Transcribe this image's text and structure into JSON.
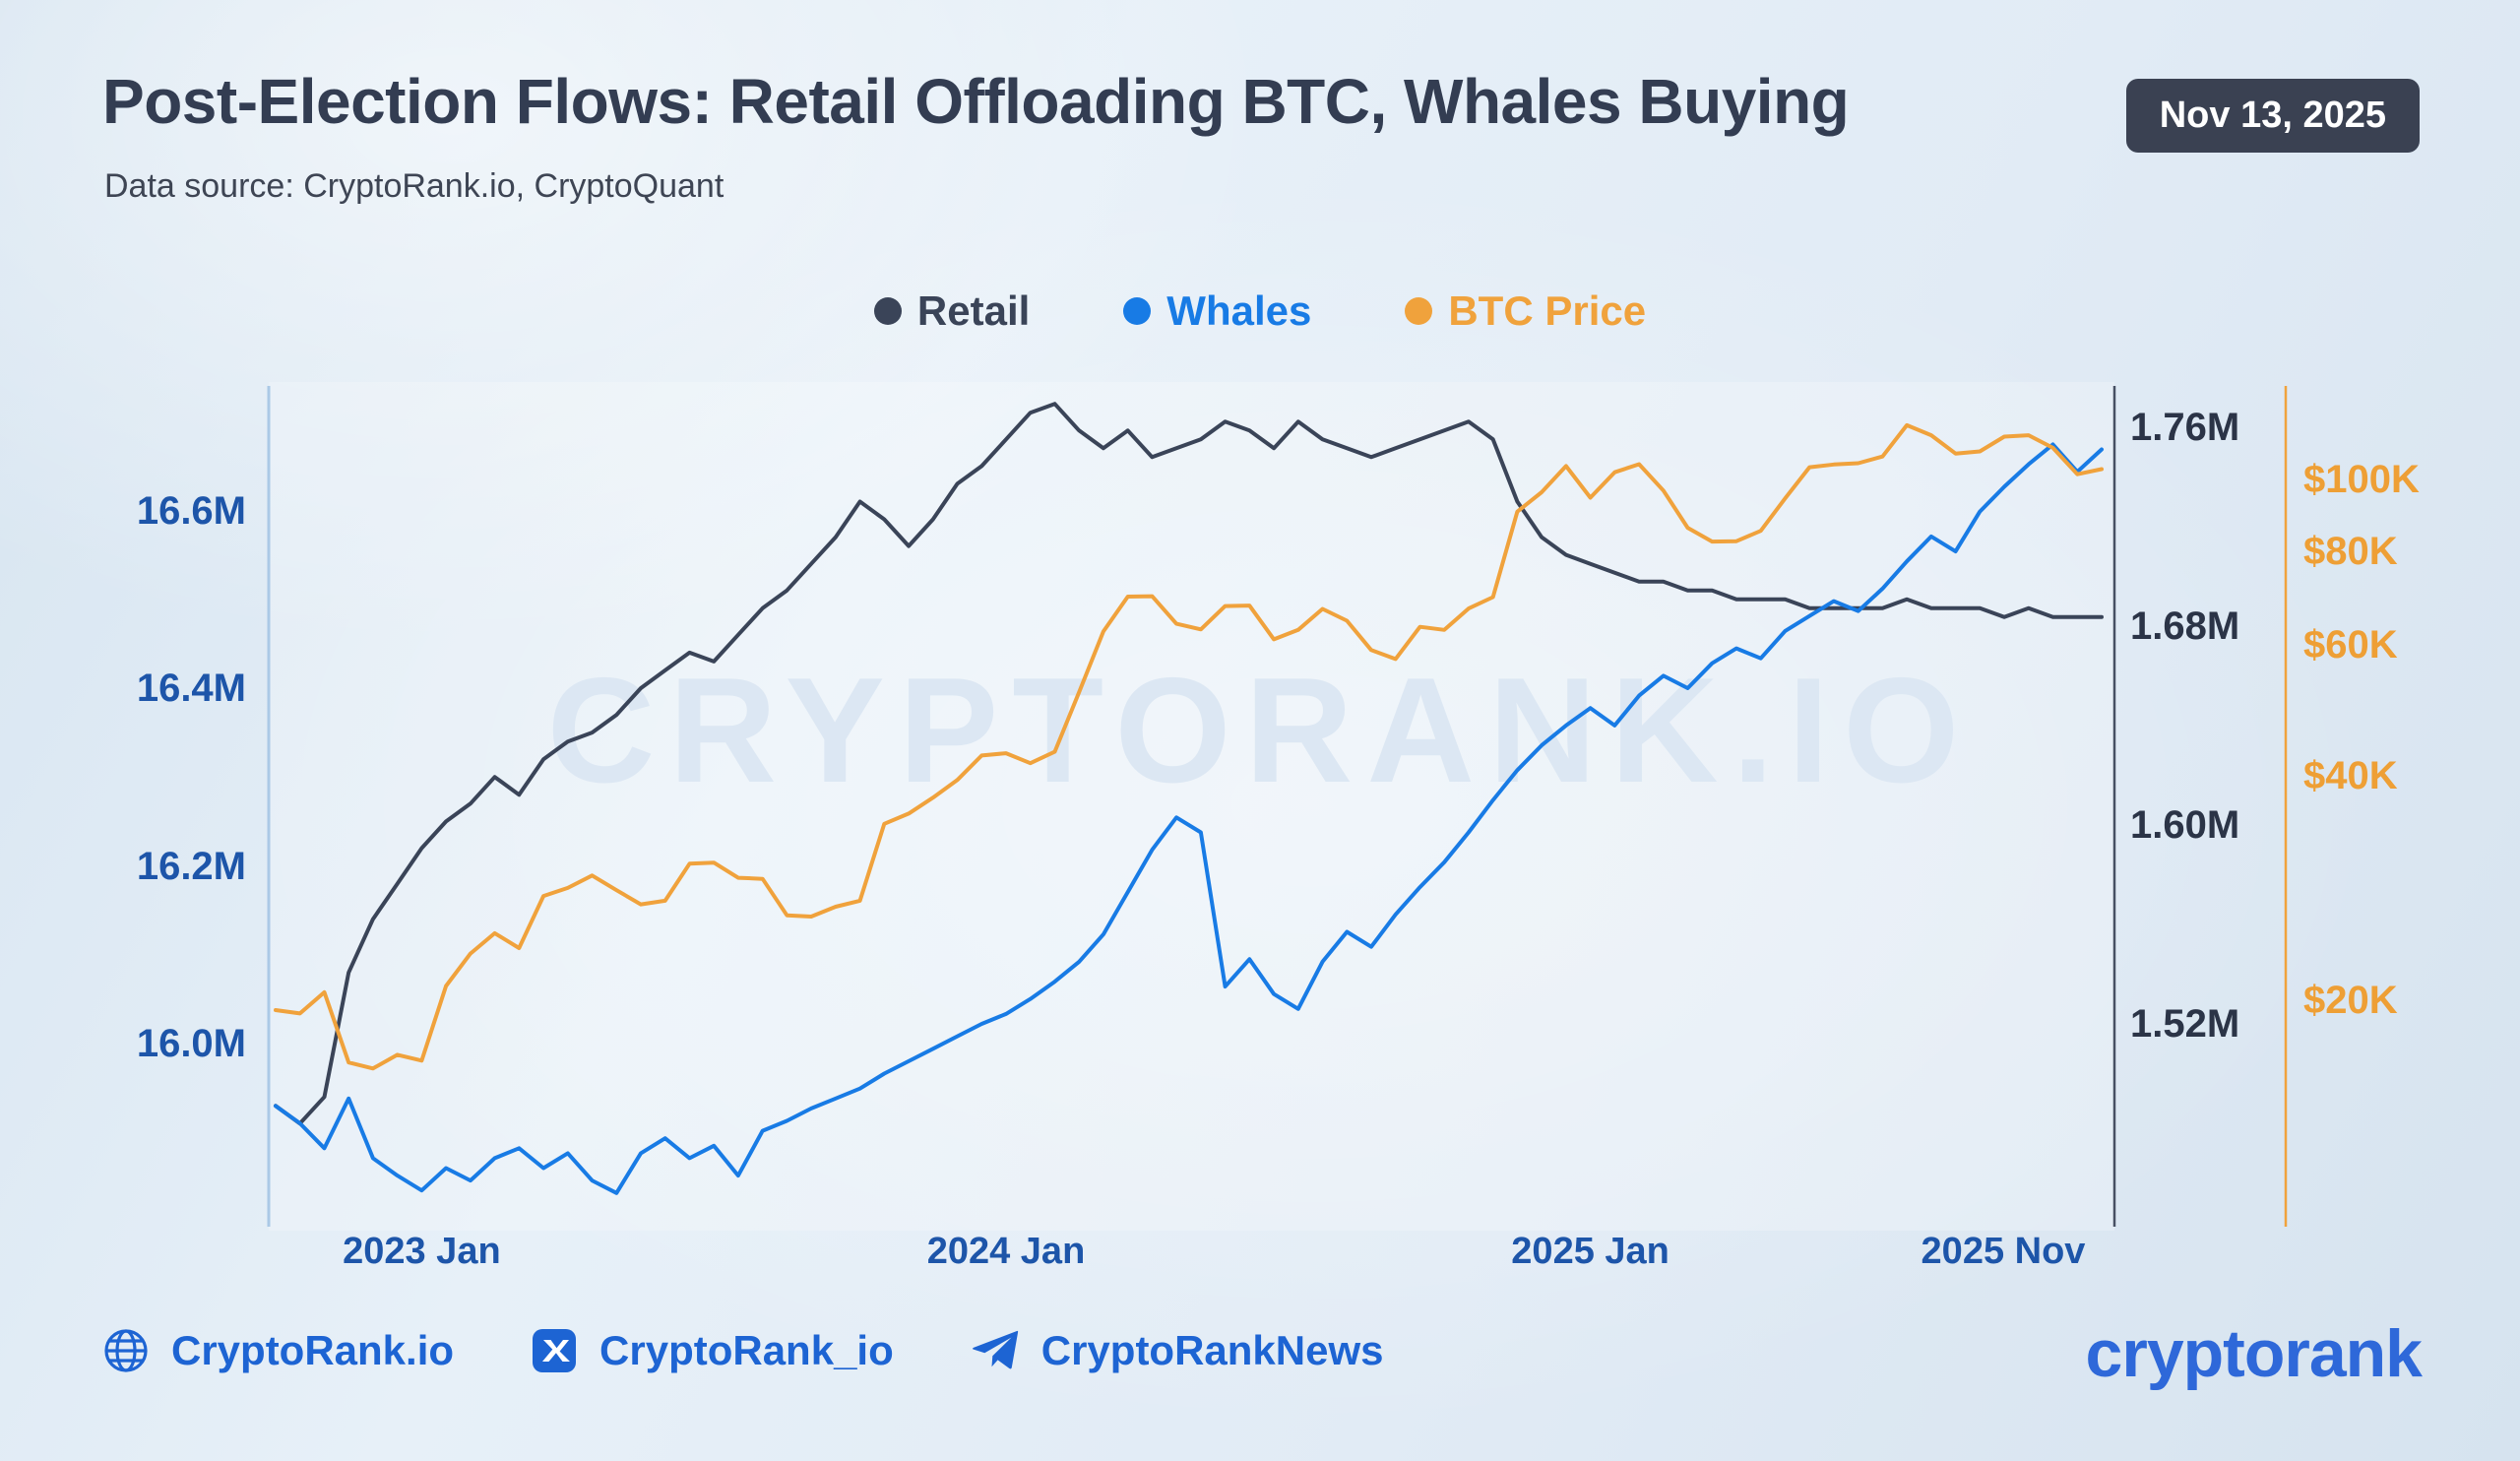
{
  "header": {
    "title": "Post-Election Flows: Retail Offloading BTC, Whales Buying",
    "date_badge": "Nov 13, 2025",
    "data_source": "Data source: CryptoRank.io, CryptoQuant"
  },
  "watermark": "CRYPTORANK.IO",
  "footer": {
    "links": [
      {
        "icon": "globe-icon",
        "label": "CryptoRank.io"
      },
      {
        "icon": "x-logo-icon",
        "label": "CryptoRank_io"
      },
      {
        "icon": "telegram-icon",
        "label": "CryptoRankNews"
      }
    ],
    "brand": "cryptorank"
  },
  "chart_data": {
    "type": "line",
    "title": "Post-Election Flows: Retail Offloading BTC, Whales Buying",
    "x_description": "Semi-monthly points, Oct 2022 through mid-Nov 2025",
    "legend_position": "top-center",
    "grid": false,
    "x_ticks": [
      {
        "label": "2023 Jan",
        "index": 6
      },
      {
        "label": "2024 Jan",
        "index": 30
      },
      {
        "label": "2025 Jan",
        "index": 54
      },
      {
        "label": "2025 Nov",
        "index": 74
      }
    ],
    "axes": {
      "left": {
        "scale": "linear",
        "unit": "M addresses",
        "color": "#1d55a9",
        "range": [
          15.85,
          16.78
        ],
        "ticks": [
          {
            "label": "16.6M",
            "value": 16.6
          },
          {
            "label": "16.4M",
            "value": 16.4
          },
          {
            "label": "16.2M",
            "value": 16.2
          },
          {
            "label": "16.0M",
            "value": 16.0
          }
        ]
      },
      "right_m": {
        "scale": "linear",
        "unit": "M addresses",
        "color": "#2b3447",
        "range": [
          1.44,
          1.78
        ],
        "ticks": [
          {
            "label": "1.76M",
            "value": 1.76
          },
          {
            "label": "1.68M",
            "value": 1.68
          },
          {
            "label": "1.60M",
            "value": 1.6
          },
          {
            "label": "1.52M",
            "value": 1.52
          }
        ]
      },
      "right_usd": {
        "scale": "log",
        "unit": "USD thousands",
        "color": "#ee9f35",
        "range": [
          14,
          125
        ],
        "ticks": [
          {
            "label": "$100K",
            "value": 100
          },
          {
            "label": "$80K",
            "value": 80
          },
          {
            "label": "$60K",
            "value": 60
          },
          {
            "label": "$40K",
            "value": 40
          },
          {
            "label": "$20K",
            "value": 20
          }
        ]
      }
    },
    "series": [
      {
        "name": "Retail",
        "axis": "left",
        "color": "#3a4458",
        "values": [
          15.93,
          15.91,
          15.94,
          16.08,
          16.14,
          16.18,
          16.22,
          16.25,
          16.27,
          16.3,
          16.28,
          16.32,
          16.34,
          16.35,
          16.37,
          16.4,
          16.42,
          16.44,
          16.43,
          16.46,
          16.49,
          16.51,
          16.54,
          16.57,
          16.61,
          16.59,
          16.56,
          16.59,
          16.63,
          16.65,
          16.68,
          16.71,
          16.72,
          16.69,
          16.67,
          16.69,
          16.66,
          16.67,
          16.68,
          16.7,
          16.69,
          16.67,
          16.7,
          16.68,
          16.67,
          16.66,
          16.67,
          16.68,
          16.69,
          16.7,
          16.68,
          16.61,
          16.57,
          16.55,
          16.54,
          16.53,
          16.52,
          16.52,
          16.51,
          16.51,
          16.5,
          16.5,
          16.5,
          16.49,
          16.49,
          16.49,
          16.49,
          16.5,
          16.49,
          16.49,
          16.49,
          16.48,
          16.49,
          16.48,
          16.48,
          16.48
        ]
      },
      {
        "name": "Whales",
        "axis": "right_m",
        "color": "#187be5",
        "values": [
          1.487,
          1.48,
          1.47,
          1.49,
          1.466,
          1.459,
          1.453,
          1.462,
          1.457,
          1.466,
          1.47,
          1.462,
          1.468,
          1.457,
          1.452,
          1.468,
          1.474,
          1.466,
          1.471,
          1.459,
          1.477,
          1.481,
          1.486,
          1.49,
          1.494,
          1.5,
          1.505,
          1.51,
          1.515,
          1.52,
          1.524,
          1.53,
          1.537,
          1.545,
          1.556,
          1.573,
          1.59,
          1.603,
          1.597,
          1.535,
          1.546,
          1.532,
          1.526,
          1.545,
          1.557,
          1.551,
          1.564,
          1.575,
          1.585,
          1.597,
          1.61,
          1.622,
          1.632,
          1.64,
          1.647,
          1.64,
          1.652,
          1.66,
          1.655,
          1.665,
          1.671,
          1.667,
          1.678,
          1.684,
          1.69,
          1.686,
          1.695,
          1.706,
          1.716,
          1.71,
          1.726,
          1.736,
          1.745,
          1.753,
          1.742,
          1.751
        ]
      },
      {
        "name": "BTC Price",
        "axis": "right_usd",
        "color": "#f0a23c",
        "values": [
          19.4,
          19.2,
          20.5,
          16.5,
          16.2,
          16.9,
          16.6,
          20.9,
          23.1,
          24.6,
          23.5,
          27.6,
          28.3,
          29.4,
          28.1,
          26.9,
          27.2,
          30.5,
          30.6,
          29.2,
          29.1,
          26.0,
          25.9,
          26.7,
          27.2,
          34.5,
          35.6,
          37.4,
          39.5,
          42.6,
          42.9,
          41.6,
          43.1,
          51.8,
          62.5,
          69.6,
          69.7,
          64.0,
          62.9,
          67.6,
          67.7,
          61.0,
          62.8,
          67.0,
          64.6,
          59.0,
          57.4,
          63.4,
          62.8,
          67.1,
          69.5,
          90.5,
          96.1,
          104.2,
          94.5,
          102.2,
          104.8,
          96.6,
          86.1,
          82.5,
          82.6,
          85.3,
          94.3,
          103.8,
          104.7,
          105.1,
          107.3,
          118.2,
          114.6,
          108.3,
          109.0,
          114.1,
          114.6,
          110.2,
          101.6,
          103.2
        ]
      }
    ]
  }
}
